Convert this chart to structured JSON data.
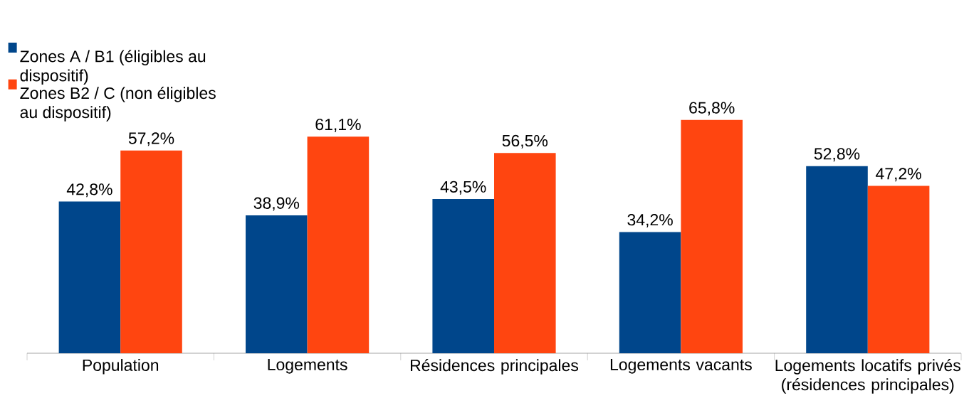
{
  "chart_data": {
    "type": "bar",
    "categories": [
      "Population",
      "Logements",
      "Résidences principales",
      "Logements vacants",
      "Logements locatifs privés (résidences principales)"
    ],
    "series": [
      {
        "name": "Zones A / B1 (éligibles au dispositif)",
        "color": "#00468b",
        "values": [
          42.8,
          38.9,
          43.5,
          34.2,
          52.8
        ],
        "value_labels": [
          "42,8%",
          "38,9%",
          "43,5%",
          "34,2%",
          "52,8%"
        ]
      },
      {
        "name": "Zones B2 / C (non éligibles au dispositif)",
        "color": "#ff4510",
        "values": [
          57.2,
          61.1,
          56.5,
          65.8,
          47.2
        ],
        "value_labels": [
          "57,2%",
          "61,1%",
          "56,5%",
          "65,8%",
          "47,2%"
        ]
      }
    ],
    "legend": "top left"
  }
}
